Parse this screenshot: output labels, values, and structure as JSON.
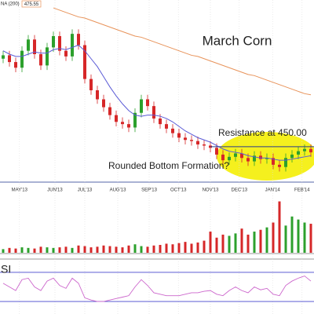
{
  "chart_data": [
    {
      "type": "candlestick",
      "title": "March Corn",
      "annotations": [
        "Resistance at 450.00",
        "Rounded Bottom Formation?"
      ],
      "legend_label": "NA (200)",
      "legend_value": "475.55",
      "ylim": [
        420,
        580
      ],
      "resistance": 450,
      "xticks": [
        {
          "value": 2.6,
          "label": "MAY'13"
        },
        {
          "value": 8.25,
          "label": "JUN'13"
        },
        {
          "value": 13,
          "label": "JUL'13"
        },
        {
          "value": 18.25,
          "label": "AUG'13"
        },
        {
          "value": 23.25,
          "label": "SEP'13"
        },
        {
          "value": 27.9,
          "label": "OCT'13"
        },
        {
          "value": 33,
          "label": "NOV'13"
        },
        {
          "value": 37.6,
          "label": "DEC'13"
        },
        {
          "value": 42.9,
          "label": "JAN'14"
        },
        {
          "value": 47.6,
          "label": "FEB'14"
        }
      ],
      "up_color": "#2ca02c",
      "down_color": "#d62728",
      "open": [
        528,
        531,
        525,
        520,
        535,
        545,
        532,
        522,
        538,
        548,
        535,
        530,
        550,
        540,
        510,
        500,
        492,
        485,
        478,
        472,
        470,
        467,
        480,
        492,
        486,
        475,
        470,
        466,
        462,
        458,
        456,
        455,
        452,
        451,
        449,
        443,
        438,
        441,
        444,
        440,
        437,
        442,
        439,
        440,
        434,
        432,
        440,
        443,
        446,
        448
      ],
      "high": [
        535,
        535,
        529,
        539,
        549,
        549,
        536,
        542,
        552,
        552,
        539,
        554,
        554,
        544,
        514,
        504,
        496,
        489,
        482,
        476,
        474,
        484,
        496,
        496,
        490,
        479,
        474,
        470,
        466,
        462,
        460,
        459,
        456,
        455,
        453,
        447,
        445,
        448,
        448,
        444,
        446,
        446,
        444,
        444,
        438,
        444,
        447,
        450,
        452,
        452
      ],
      "low": [
        524,
        521,
        516,
        516,
        531,
        528,
        518,
        518,
        534,
        531,
        526,
        526,
        536,
        506,
        496,
        488,
        481,
        474,
        468,
        466,
        463,
        463,
        476,
        482,
        471,
        466,
        462,
        458,
        454,
        452,
        451,
        448,
        447,
        445,
        439,
        434,
        434,
        437,
        436,
        433,
        433,
        435,
        435,
        430,
        428,
        428,
        436,
        439,
        442,
        441
      ],
      "close": [
        531,
        525,
        520,
        535,
        545,
        532,
        522,
        538,
        548,
        535,
        530,
        550,
        540,
        510,
        500,
        492,
        485,
        478,
        472,
        470,
        467,
        480,
        492,
        486,
        475,
        470,
        466,
        462,
        458,
        456,
        455,
        452,
        451,
        449,
        443,
        438,
        441,
        444,
        440,
        437,
        442,
        439,
        440,
        434,
        432,
        440,
        443,
        446,
        448,
        445
      ],
      "series": [
        {
          "color": "#5b5bd6",
          "values": [
            535,
            532,
            530,
            530,
            532,
            534,
            533,
            533,
            536,
            537,
            536,
            538,
            540,
            535,
            528,
            521,
            512,
            503,
            495,
            488,
            482,
            478,
            477,
            478,
            478,
            477,
            475,
            472,
            468,
            464,
            461,
            458,
            456,
            454,
            451,
            448,
            446,
            445,
            444,
            442,
            441,
            440,
            440,
            439,
            438,
            438,
            439,
            440,
            441,
            442
          ]
        },
        {
          "color": "#e8935a",
          "values": [
            null,
            null,
            null,
            null,
            null,
            null,
            null,
            null,
            573,
            571,
            569,
            567,
            565,
            564,
            562,
            560,
            558,
            556,
            554,
            552,
            550,
            548,
            547,
            545,
            543,
            541,
            539,
            537,
            535,
            533,
            531,
            530,
            528,
            526,
            524,
            522,
            520,
            518,
            516,
            514,
            513,
            511,
            509,
            507,
            505,
            503,
            501,
            499,
            497,
            496
          ]
        }
      ]
    },
    {
      "type": "bar",
      "ylim": [
        0,
        100
      ],
      "values": [
        6,
        8,
        7,
        9,
        8,
        7,
        10,
        9,
        8,
        9,
        10,
        8,
        12,
        11,
        9,
        10,
        12,
        11,
        10,
        9,
        12,
        14,
        11,
        10,
        12,
        13,
        15,
        14,
        16,
        18,
        15,
        17,
        20,
        35,
        25,
        30,
        28,
        32,
        40,
        30,
        35,
        38,
        42,
        50,
        85,
        45,
        60,
        55,
        50,
        48
      ]
    },
    {
      "type": "line",
      "label": "SI",
      "ylim": [
        15,
        85
      ],
      "levels": [
        70,
        30
      ],
      "level_color": "#4444cc",
      "color": "#cc66cc",
      "values": [
        55,
        50,
        45,
        60,
        62,
        50,
        45,
        58,
        62,
        52,
        48,
        62,
        55,
        35,
        32,
        30,
        30,
        32,
        34,
        36,
        38,
        50,
        60,
        52,
        42,
        40,
        38,
        38,
        38,
        40,
        42,
        42,
        44,
        45,
        40,
        38,
        45,
        50,
        45,
        42,
        50,
        46,
        48,
        40,
        38,
        52,
        58,
        62,
        65,
        58
      ]
    }
  ]
}
